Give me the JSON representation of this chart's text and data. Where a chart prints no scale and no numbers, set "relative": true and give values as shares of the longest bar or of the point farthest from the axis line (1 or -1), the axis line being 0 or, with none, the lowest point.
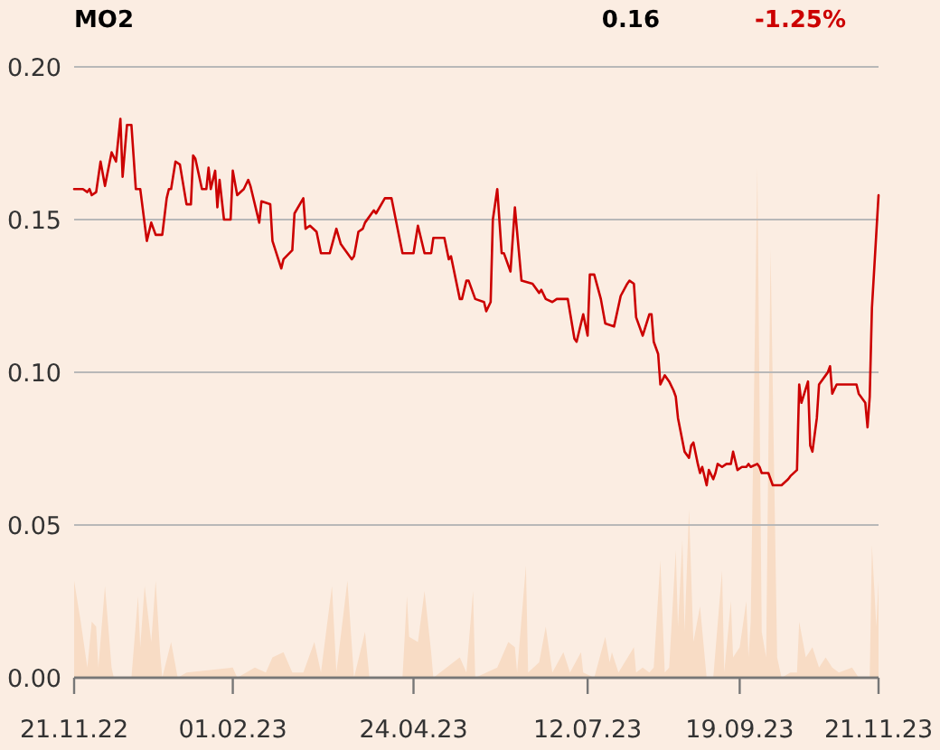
{
  "chart_data": [
    {
      "type": "line",
      "title": "MO2",
      "annotations": [
        "0.16",
        "-1.25%"
      ],
      "grid": "y",
      "xlim": [
        "2022-11-21",
        "2023-11-21"
      ],
      "xticks": [
        {
          "value": "2022-11-21",
          "label": "21.11.22"
        },
        {
          "value": "2023-02-01",
          "label": "01.02.23"
        },
        {
          "value": "2023-04-24",
          "label": "24.04.23"
        },
        {
          "value": "2023-07-12",
          "label": "12.07.23"
        },
        {
          "value": "2023-09-19",
          "label": "19.09.23"
        },
        {
          "value": "2023-11-21",
          "label": "21.11.23"
        }
      ],
      "ylim": [
        0,
        0.2
      ],
      "yticks": [
        {
          "value": 0,
          "label": "0.00"
        },
        0.05,
        {
          "value": 0.1,
          "label": "0.10"
        },
        0.15,
        {
          "value": 0.2,
          "label": "0.20"
        }
      ],
      "x": [
        "2022-11-21",
        "2022-11-25",
        "2022-11-27",
        "2022-11-28",
        "2022-11-29",
        "2022-12-01",
        "2022-12-03",
        "2022-12-05",
        "2022-12-08",
        "2022-12-10",
        "2022-12-12",
        "2022-12-13",
        "2022-12-15",
        "2022-12-17",
        "2022-12-19",
        "2022-12-21",
        "2022-12-24",
        "2022-12-26",
        "2022-12-28",
        "2022-12-31",
        "2023-01-02",
        "2023-01-03",
        "2023-01-04",
        "2023-01-06",
        "2023-01-08",
        "2023-01-11",
        "2023-01-13",
        "2023-01-14",
        "2023-01-15",
        "2023-01-18",
        "2023-01-20",
        "2023-01-21",
        "2023-01-22",
        "2023-01-24",
        "2023-01-25",
        "2023-01-26",
        "2023-01-28",
        "2023-01-31",
        "2023-02-01",
        "2023-02-03",
        "2023-02-06",
        "2023-02-08",
        "2023-02-09",
        "2023-02-13",
        "2023-02-14",
        "2023-02-18",
        "2023-02-19",
        "2023-02-23",
        "2023-02-24",
        "2023-02-28",
        "2023-03-01",
        "2023-03-05",
        "2023-03-06",
        "2023-03-08",
        "2023-03-11",
        "2023-03-13",
        "2023-03-17",
        "2023-03-20",
        "2023-03-22",
        "2023-03-23",
        "2023-03-27",
        "2023-03-28",
        "2023-03-30",
        "2023-04-01",
        "2023-04-02",
        "2023-04-06",
        "2023-04-07",
        "2023-04-11",
        "2023-04-14",
        "2023-04-19",
        "2023-04-24",
        "2023-04-26",
        "2023-04-29",
        "2023-05-02",
        "2023-05-03",
        "2023-05-08",
        "2023-05-10",
        "2023-05-11",
        "2023-05-15",
        "2023-05-16",
        "2023-05-18",
        "2023-05-19",
        "2023-05-22",
        "2023-05-26",
        "2023-05-27",
        "2023-05-29",
        "2023-05-30",
        "2023-06-01",
        "2023-06-03",
        "2023-06-04",
        "2023-06-07",
        "2023-06-09",
        "2023-06-12",
        "2023-06-17",
        "2023-06-20",
        "2023-06-21",
        "2023-06-23",
        "2023-06-26",
        "2023-06-28",
        "2023-07-03",
        "2023-07-06",
        "2023-07-07",
        "2023-07-10",
        "2023-07-12",
        "2023-07-13",
        "2023-07-15",
        "2023-07-18",
        "2023-07-20",
        "2023-07-24",
        "2023-07-27",
        "2023-07-30",
        "2023-07-31",
        "2023-08-02",
        "2023-08-03",
        "2023-08-06",
        "2023-08-09",
        "2023-08-10",
        "2023-08-11",
        "2023-08-13",
        "2023-08-14",
        "2023-08-16",
        "2023-08-18",
        "2023-08-20",
        "2023-08-21",
        "2023-08-22",
        "2023-08-25",
        "2023-08-27",
        "2023-08-28",
        "2023-08-29",
        "2023-08-31",
        "2023-09-01",
        "2023-09-02",
        "2023-09-04",
        "2023-09-05",
        "2023-09-07",
        "2023-09-08",
        "2023-09-09",
        "2023-09-11",
        "2023-09-13",
        "2023-09-15",
        "2023-09-16",
        "2023-09-18",
        "2023-09-20",
        "2023-09-22",
        "2023-09-23",
        "2023-09-24",
        "2023-09-27",
        "2023-09-28",
        "2023-09-29",
        "2023-10-02",
        "2023-10-03",
        "2023-10-04",
        "2023-10-08",
        "2023-10-11",
        "2023-10-12",
        "2023-10-15",
        "2023-10-16",
        "2023-10-17",
        "2023-10-20",
        "2023-10-21",
        "2023-10-22",
        "2023-10-24",
        "2023-10-25",
        "2023-10-28",
        "2023-10-29",
        "2023-10-30",
        "2023-10-31",
        "2023-11-02",
        "2023-11-04",
        "2023-11-11",
        "2023-11-12",
        "2023-11-15",
        "2023-11-16",
        "2023-11-17",
        "2023-11-18",
        "2023-11-21"
      ],
      "series": [
        {
          "color": "#cc0000",
          "values": [
            0.16,
            0.16,
            0.159,
            0.16,
            0.158,
            0.159,
            0.169,
            0.161,
            0.172,
            0.169,
            0.183,
            0.164,
            0.181,
            0.181,
            0.16,
            0.16,
            0.143,
            0.149,
            0.145,
            0.145,
            0.157,
            0.16,
            0.16,
            0.169,
            0.168,
            0.155,
            0.155,
            0.171,
            0.17,
            0.16,
            0.16,
            0.167,
            0.16,
            0.166,
            0.154,
            0.163,
            0.15,
            0.15,
            0.166,
            0.158,
            0.16,
            0.163,
            0.161,
            0.149,
            0.156,
            0.155,
            0.143,
            0.134,
            0.137,
            0.14,
            0.152,
            0.157,
            0.147,
            0.148,
            0.146,
            0.139,
            0.139,
            0.147,
            0.142,
            0.141,
            0.137,
            0.138,
            0.146,
            0.147,
            0.149,
            0.153,
            0.152,
            0.157,
            0.157,
            0.139,
            0.139,
            0.148,
            0.139,
            0.139,
            0.144,
            0.144,
            0.137,
            0.138,
            0.124,
            0.124,
            0.13,
            0.13,
            0.124,
            0.123,
            0.12,
            0.123,
            0.15,
            0.16,
            0.139,
            0.139,
            0.133,
            0.154,
            0.13,
            0.129,
            0.126,
            0.127,
            0.124,
            0.123,
            0.124,
            0.124,
            0.111,
            0.11,
            0.119,
            0.112,
            0.132,
            0.132,
            0.124,
            0.116,
            0.115,
            0.125,
            0.129,
            0.13,
            0.129,
            0.118,
            0.112,
            0.119,
            0.119,
            0.11,
            0.106,
            0.096,
            0.099,
            0.097,
            0.094,
            0.092,
            0.085,
            0.074,
            0.072,
            0.076,
            0.077,
            0.07,
            0.067,
            0.069,
            0.063,
            0.068,
            0.065,
            0.067,
            0.07,
            0.069,
            0.07,
            0.07,
            0.074,
            0.068,
            0.069,
            0.069,
            0.07,
            0.069,
            0.07,
            0.069,
            0.067,
            0.067,
            0.065,
            0.063,
            0.063,
            0.065,
            0.066,
            0.068,
            0.096,
            0.09,
            0.097,
            0.076,
            0.074,
            0.085,
            0.096,
            0.099,
            0.1,
            0.102,
            0.093,
            0.096,
            0.096,
            0.096,
            0.093,
            0.09,
            0.082,
            0.092,
            0.121,
            0.158
          ]
        }
      ]
    },
    {
      "type": "area",
      "relative": true,
      "xlim": [
        "2022-11-21",
        "2023-11-21"
      ],
      "x": [
        "2022-11-21",
        "2022-11-24",
        "2022-11-27",
        "2022-11-29",
        "2022-12-01",
        "2022-12-02",
        "2022-12-05",
        "2022-12-08",
        "2022-12-09",
        "2022-12-17",
        "2022-12-20",
        "2022-12-21",
        "2022-12-23",
        "2022-12-26",
        "2022-12-28",
        "2022-12-30",
        "2022-12-31",
        "2023-01-04",
        "2023-01-07",
        "2023-01-11",
        "2023-02-01",
        "2023-02-03",
        "2023-02-11",
        "2023-02-16",
        "2023-02-19",
        "2023-02-24",
        "2023-02-28",
        "2023-03-05",
        "2023-03-10",
        "2023-03-13",
        "2023-03-18",
        "2023-03-20",
        "2023-03-25",
        "2023-03-28",
        "2023-04-02",
        "2023-04-04",
        "2023-04-19",
        "2023-04-21",
        "2023-04-22",
        "2023-04-26",
        "2023-04-29",
        "2023-05-02",
        "2023-05-03",
        "2023-05-15",
        "2023-05-18",
        "2023-05-21",
        "2023-05-22",
        "2023-06-01",
        "2023-06-06",
        "2023-06-09",
        "2023-06-10",
        "2023-06-14",
        "2023-06-15",
        "2023-06-20",
        "2023-06-23",
        "2023-06-26",
        "2023-07-01",
        "2023-07-04",
        "2023-07-09",
        "2023-07-10",
        "2023-07-15",
        "2023-07-20",
        "2023-07-22",
        "2023-07-23",
        "2023-07-26",
        "2023-08-02",
        "2023-08-03",
        "2023-08-06",
        "2023-08-09",
        "2023-08-11",
        "2023-08-14",
        "2023-08-16",
        "2023-08-18",
        "2023-08-21",
        "2023-08-22",
        "2023-08-24",
        "2023-08-25",
        "2023-08-27",
        "2023-08-29",
        "2023-09-01",
        "2023-09-04",
        "2023-09-07",
        "2023-09-11",
        "2023-09-12",
        "2023-09-15",
        "2023-09-16",
        "2023-09-19",
        "2023-09-22",
        "2023-09-23",
        "2023-09-24",
        "2023-09-27",
        "2023-09-29",
        "2023-10-01",
        "2023-10-03",
        "2023-10-06",
        "2023-10-08",
        "2023-10-12",
        "2023-10-15",
        "2023-10-16",
        "2023-10-19",
        "2023-10-22",
        "2023-10-25",
        "2023-10-28",
        "2023-10-31",
        "2023-11-03",
        "2023-11-09",
        "2023-11-12",
        "2023-11-17",
        "2023-11-18",
        "2023-11-20",
        "2023-11-21"
      ],
      "series": [
        {
          "color": "#f8dcc5",
          "values": [
            0.19,
            0.11,
            0.02,
            0.11,
            0.1,
            0.02,
            0.18,
            0.02,
            0,
            0,
            0.16,
            0.06,
            0.18,
            0.07,
            0.19,
            0.05,
            0,
            0.07,
            0,
            0.01,
            0.02,
            0,
            0.02,
            0.01,
            0.04,
            0.05,
            0.01,
            0.01,
            0.07,
            0.01,
            0.18,
            0.01,
            0.19,
            0,
            0.09,
            0,
            0,
            0.16,
            0.08,
            0.07,
            0.17,
            0.05,
            0,
            0.04,
            0.01,
            0.17,
            0,
            0.02,
            0.07,
            0.06,
            0.01,
            0.22,
            0.01,
            0.03,
            0.1,
            0.01,
            0.05,
            0.01,
            0.05,
            0.01,
            0,
            0.08,
            0.03,
            0.05,
            0.01,
            0.06,
            0.01,
            0.02,
            0.01,
            0.02,
            0.23,
            0.01,
            0.02,
            0.25,
            0.1,
            0.27,
            0.09,
            0.33,
            0.07,
            0.14,
            0,
            0,
            0.21,
            0.01,
            0.15,
            0.04,
            0.06,
            0.15,
            0.04,
            0.11,
            1,
            0.09,
            0.04,
            0.84,
            0.04,
            0,
            0.01,
            0.01,
            0.11,
            0.04,
            0.06,
            0.02,
            0.04,
            0.02,
            0.01,
            0.02,
            0,
            0,
            0.26,
            0.1,
            0.19
          ]
        }
      ]
    }
  ]
}
